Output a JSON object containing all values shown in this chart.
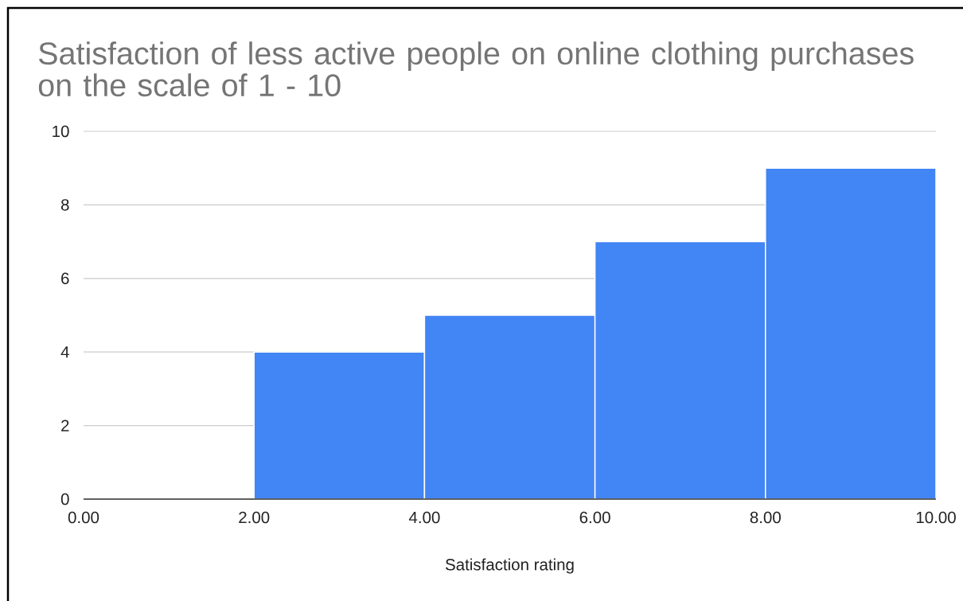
{
  "chart_data": {
    "type": "histogram",
    "title": "Satisfaction of less active people on online clothing purchases on the scale of 1 - 10",
    "xlabel": "Satisfaction rating",
    "bins": [
      0,
      2,
      4,
      6,
      8,
      10
    ],
    "values": [
      0,
      4,
      5,
      7,
      9
    ],
    "color": "#4285f4",
    "xlim": [
      0,
      10
    ],
    "ylim": [
      0,
      10
    ],
    "xticks": [
      {
        "value": 0,
        "label": "0.00"
      },
      {
        "value": 2,
        "label": "2.00"
      },
      {
        "value": 4,
        "label": "4.00"
      },
      {
        "value": 6,
        "label": "6.00"
      },
      {
        "value": 8,
        "label": "8.00"
      },
      {
        "value": 10,
        "label": "10.00"
      }
    ],
    "yticks": [
      0,
      2,
      4,
      6,
      8,
      10
    ],
    "grid": "y"
  }
}
